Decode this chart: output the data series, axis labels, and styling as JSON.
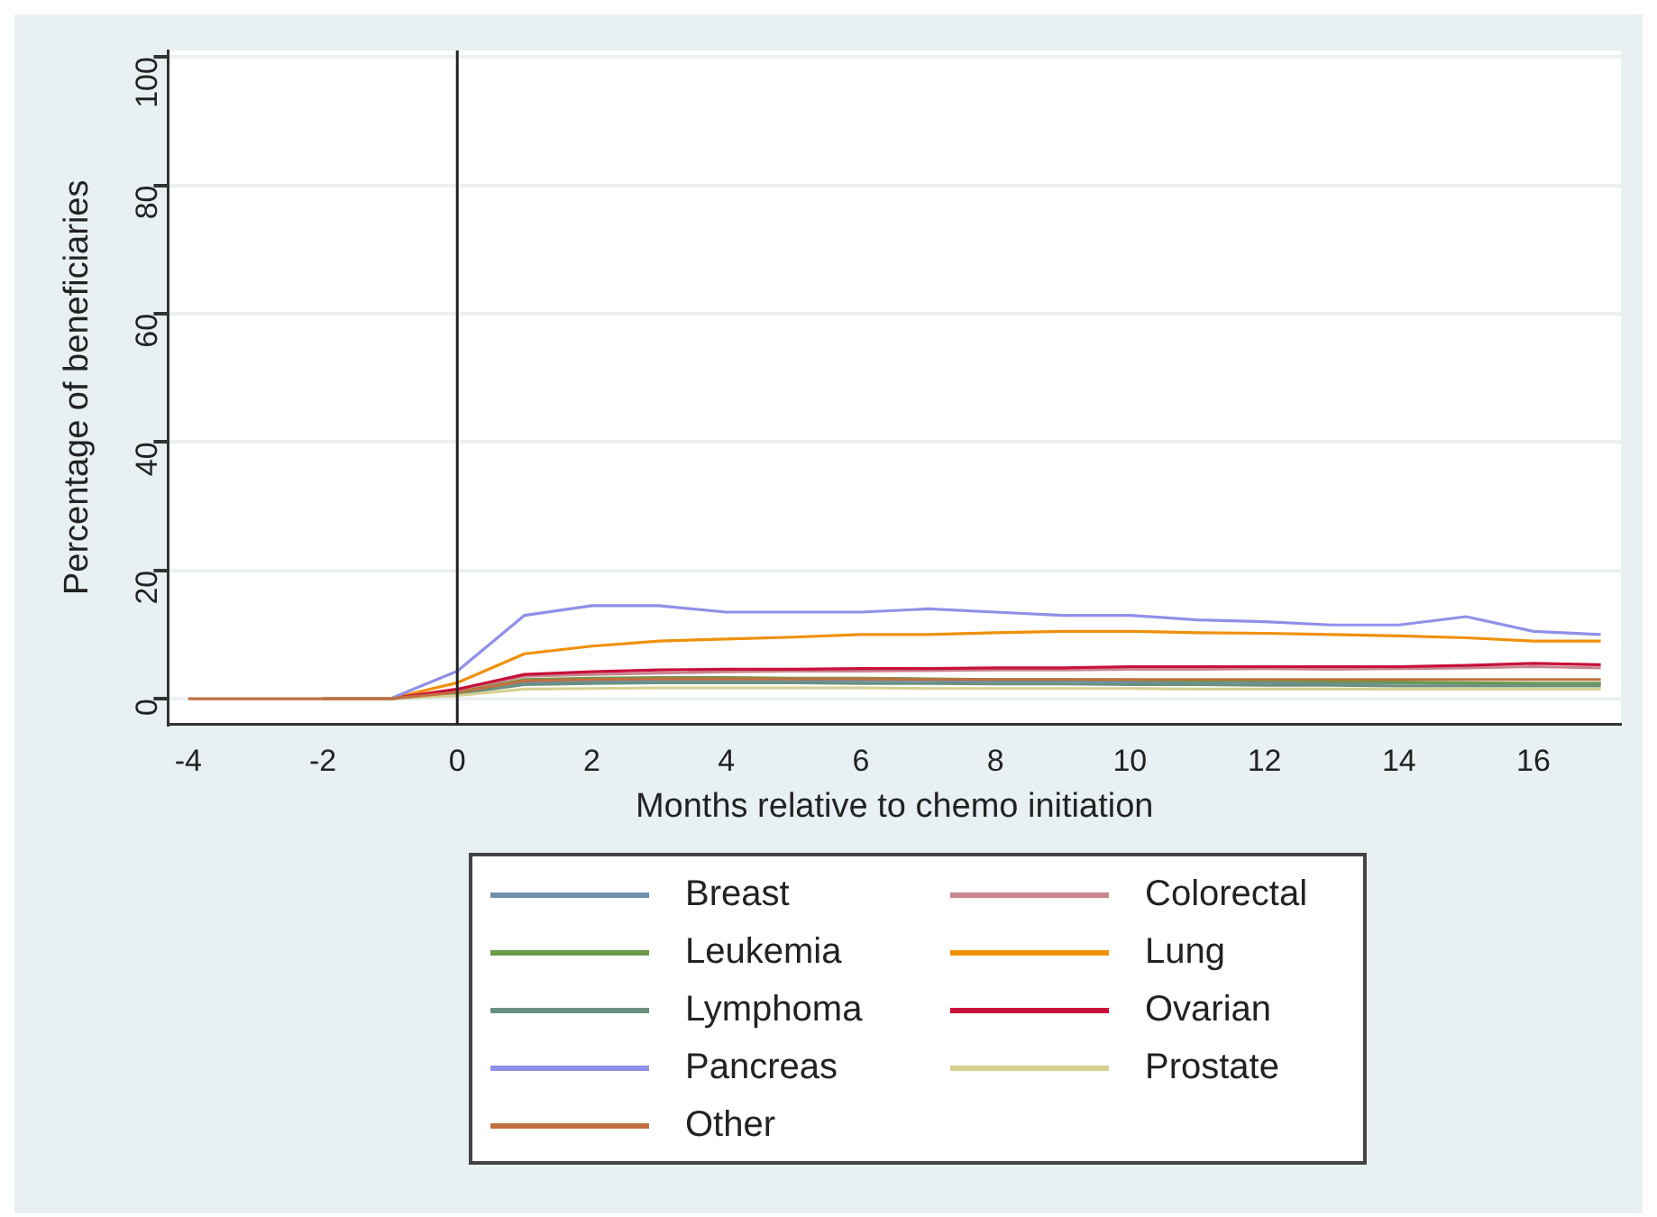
{
  "chart_data": {
    "type": "line",
    "xlabel": "Months relative to chemo initiation",
    "ylabel": "Percentage of beneficiaries",
    "x": [
      -4,
      -3,
      -2,
      -1,
      0,
      1,
      2,
      3,
      4,
      5,
      6,
      7,
      8,
      9,
      10,
      11,
      12,
      13,
      14,
      15,
      16,
      17
    ],
    "xlim": [
      -4.3,
      17.3
    ],
    "xticks": [
      -4,
      -2,
      0,
      2,
      4,
      6,
      8,
      10,
      12,
      14,
      16
    ],
    "ylim": [
      -4,
      101
    ],
    "yticks": [
      0,
      20,
      40,
      60,
      80,
      100
    ],
    "grid": "y",
    "legend": "bottom",
    "marker": "none",
    "line_style": "solid",
    "ref_lines": [
      {
        "axis": "x",
        "value": 0,
        "color": "#222222"
      }
    ],
    "series": [
      {
        "name": "Breast",
        "color": "#6f8fb0",
        "values": [
          null,
          null,
          0,
          0,
          1,
          2.5,
          2.7,
          2.8,
          2.8,
          2.8,
          2.8,
          2.8,
          2.7,
          2.7,
          2.6,
          2.6,
          2.5,
          2.5,
          2.5,
          2.4,
          2.4,
          2.4
        ]
      },
      {
        "name": "Colorectal",
        "color": "#c8868e",
        "values": [
          null,
          null,
          0,
          0,
          1.3,
          3.5,
          3.8,
          4,
          4.2,
          4.3,
          4.3,
          4.4,
          4.5,
          4.5,
          4.6,
          4.6,
          4.7,
          4.6,
          4.7,
          4.8,
          5,
          4.8
        ]
      },
      {
        "name": "Leukemia",
        "color": "#6a9a4a",
        "values": [
          null,
          null,
          0,
          0,
          1,
          3,
          3.2,
          3.3,
          3.3,
          3.2,
          3.2,
          3.1,
          3,
          3,
          2.9,
          2.8,
          2.8,
          2.7,
          2.6,
          2.5,
          2.4,
          2.4
        ]
      },
      {
        "name": "Lung",
        "color": "#f0900a",
        "values": [
          null,
          null,
          0,
          0,
          2.5,
          7,
          8.2,
          9,
          9.3,
          9.6,
          10,
          10,
          10.3,
          10.5,
          10.5,
          10.3,
          10.2,
          10,
          9.8,
          9.5,
          9,
          9
        ]
      },
      {
        "name": "Lymphoma",
        "color": "#6a9080",
        "values": [
          null,
          null,
          0,
          0,
          0.8,
          2.2,
          2.4,
          2.5,
          2.5,
          2.5,
          2.4,
          2.4,
          2.3,
          2.3,
          2.2,
          2.2,
          2.1,
          2.1,
          2,
          2,
          2,
          2
        ]
      },
      {
        "name": "Ovarian",
        "color": "#c8103a",
        "values": [
          null,
          null,
          0,
          0,
          1.5,
          3.8,
          4.2,
          4.5,
          4.6,
          4.6,
          4.7,
          4.7,
          4.8,
          4.8,
          5,
          5,
          5,
          5,
          5,
          5.2,
          5.5,
          5.3
        ]
      },
      {
        "name": "Pancreas",
        "color": "#9090e8",
        "values": [
          null,
          null,
          0,
          0,
          4.3,
          13,
          14.5,
          14.5,
          13.5,
          13.5,
          13.5,
          14,
          13.5,
          13,
          13,
          12.3,
          12,
          11.5,
          11.5,
          12.8,
          10.5,
          10
        ]
      },
      {
        "name": "Prostate",
        "color": "#d8d090",
        "values": [
          null,
          null,
          0,
          0,
          0.5,
          1.5,
          1.6,
          1.7,
          1.7,
          1.7,
          1.7,
          1.6,
          1.6,
          1.6,
          1.6,
          1.5,
          1.5,
          1.5,
          1.5,
          1.5,
          1.5,
          1.5
        ]
      },
      {
        "name": "Other",
        "color": "#c07040",
        "values": [
          0,
          0,
          0,
          0,
          1,
          2.8,
          3,
          3.1,
          3.1,
          3.1,
          3.1,
          3,
          3,
          3,
          3,
          3,
          3,
          3,
          3,
          3,
          3,
          3
        ]
      }
    ]
  }
}
